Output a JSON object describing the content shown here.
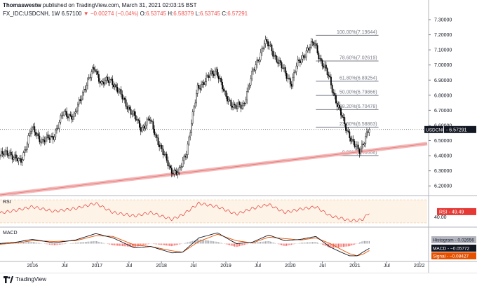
{
  "header": {
    "author": "Thomaswestw",
    "published": "published on TradingView.com, March 31, 2021 02:03:15 BST",
    "symbol": "FX_IDC:USDCNH, 1W",
    "last": "6.57100",
    "change": "▼ −0.00274 (−0.04%)",
    "open_label": "O:",
    "open": "6.53745",
    "high_label": "H:",
    "high": "6.58379",
    "low_label": "L:",
    "low": "6.53745",
    "close_label": "C:",
    "close": "6.57291"
  },
  "colors": {
    "up": "#26a69a",
    "down": "#ef5350",
    "candle": "#000000",
    "trendline": "#f4b8b8",
    "fib": "#787b86",
    "rsi": "#e53935",
    "macd": "#131722",
    "signal": "#e65100",
    "hist_up": "#9598a1",
    "hist_down": "#ef5350"
  },
  "chart_data": [
    {
      "type": "candlestick",
      "timeframe": "1W",
      "y_range": [
        6.15,
        7.3
      ],
      "y_ticks": [
        "6.20000",
        "6.30000",
        "6.40000",
        "6.50000",
        "6.60000",
        "6.70000",
        "6.80000",
        "6.90000",
        "7.00000",
        "7.10000",
        "7.20000",
        "7.30000"
      ],
      "x_range": [
        "2015-07-01",
        "2022-02-15"
      ],
      "x_ticks": [
        {
          "t": "2016-01-01",
          "label": "2016"
        },
        {
          "t": "2016-07-01",
          "label": "Jul"
        },
        {
          "t": "2017-01-01",
          "label": "2017"
        },
        {
          "t": "2017-07-01",
          "label": "Jul"
        },
        {
          "t": "2018-01-01",
          "label": "2018"
        },
        {
          "t": "2018-07-01",
          "label": "Jul"
        },
        {
          "t": "2019-01-01",
          "label": "2019"
        },
        {
          "t": "2019-07-01",
          "label": "Jul"
        },
        {
          "t": "2020-01-01",
          "label": "2020"
        },
        {
          "t": "2020-07-01",
          "label": "Jul"
        },
        {
          "t": "2021-01-01",
          "label": "2021"
        },
        {
          "t": "2021-07-01",
          "label": "Jul"
        },
        {
          "t": "2022-01-01",
          "label": "2022"
        }
      ],
      "price_path": [
        [
          "2015-07-01",
          6.4
        ],
        [
          "2015-09-01",
          6.42
        ],
        [
          "2015-11-01",
          6.35
        ],
        [
          "2016-01-01",
          6.58
        ],
        [
          "2016-03-01",
          6.5
        ],
        [
          "2016-05-01",
          6.52
        ],
        [
          "2016-07-01",
          6.68
        ],
        [
          "2016-09-01",
          6.66
        ],
        [
          "2016-11-01",
          6.86
        ],
        [
          "2016-12-25",
          6.98
        ],
        [
          "2017-02-01",
          6.88
        ],
        [
          "2017-04-01",
          6.9
        ],
        [
          "2017-06-01",
          6.78
        ],
        [
          "2017-08-01",
          6.67
        ],
        [
          "2017-09-15",
          6.58
        ],
        [
          "2017-11-01",
          6.64
        ],
        [
          "2018-01-15",
          6.42
        ],
        [
          "2018-03-01",
          6.31
        ],
        [
          "2018-04-15",
          6.28
        ],
        [
          "2018-06-01",
          6.44
        ],
        [
          "2018-08-01",
          6.85
        ],
        [
          "2018-10-01",
          6.92
        ],
        [
          "2018-11-15",
          6.97
        ],
        [
          "2019-01-01",
          6.8
        ],
        [
          "2019-03-01",
          6.72
        ],
        [
          "2019-04-15",
          6.73
        ],
        [
          "2019-06-01",
          6.92
        ],
        [
          "2019-08-15",
          7.15
        ],
        [
          "2019-09-15",
          7.12
        ],
        [
          "2019-11-01",
          7.02
        ],
        [
          "2020-01-15",
          6.88
        ],
        [
          "2020-02-15",
          7.0
        ],
        [
          "2020-04-01",
          7.08
        ],
        [
          "2020-05-25",
          7.15
        ],
        [
          "2020-07-01",
          7.02
        ],
        [
          "2020-08-15",
          6.92
        ],
        [
          "2020-10-01",
          6.73
        ],
        [
          "2020-11-15",
          6.6
        ],
        [
          "2021-01-01",
          6.47
        ],
        [
          "2021-02-01",
          6.43
        ],
        [
          "2021-03-01",
          6.5
        ],
        [
          "2021-03-29",
          6.57
        ]
      ],
      "trendline": {
        "from": [
          "2015-07-01",
          6.14
        ],
        "to": [
          "2022-02-15",
          6.48
        ]
      },
      "fib_levels": [
        {
          "label": "100.00%(7.19644)",
          "value": 7.19644
        },
        {
          "label": "78.60%(7.02619)",
          "value": 7.02619
        },
        {
          "label": "61.80%(6.89254)",
          "value": 6.89254
        },
        {
          "label": "50.00%(6.79866)",
          "value": 6.79866
        },
        {
          "label": "38.20%(6.70478)",
          "value": 6.70478
        },
        {
          "label": "23.60%(6.58863)",
          "value": 6.58863
        },
        {
          "label": "0.00%(6.40088)",
          "value": 6.40088
        }
      ],
      "fib_range": [
        "2020-05-25",
        "2021-05-15"
      ],
      "last_label": "USDCNH",
      "last_value": 6.57291,
      "last_text": "6.57291"
    },
    {
      "type": "line",
      "name": "RSI",
      "value_text": "49.49",
      "y_range": [
        25,
        75
      ],
      "band": [
        30,
        70
      ],
      "y_ticks": [
        "40.00"
      ],
      "path": [
        [
          "2015-07-01",
          47
        ],
        [
          "2015-10-01",
          52
        ],
        [
          "2016-01-01",
          58
        ],
        [
          "2016-05-01",
          50
        ],
        [
          "2016-09-01",
          55
        ],
        [
          "2016-12-25",
          64
        ],
        [
          "2017-04-01",
          48
        ],
        [
          "2017-08-01",
          42
        ],
        [
          "2017-11-01",
          48
        ],
        [
          "2018-03-01",
          36
        ],
        [
          "2018-05-01",
          44
        ],
        [
          "2018-08-01",
          64
        ],
        [
          "2018-11-15",
          58
        ],
        [
          "2019-03-01",
          45
        ],
        [
          "2019-06-01",
          55
        ],
        [
          "2019-09-01",
          62
        ],
        [
          "2019-12-01",
          48
        ],
        [
          "2020-03-01",
          54
        ],
        [
          "2020-05-25",
          58
        ],
        [
          "2020-08-15",
          42
        ],
        [
          "2020-10-15",
          38
        ],
        [
          "2020-12-01",
          34
        ],
        [
          "2021-01-15",
          34
        ],
        [
          "2021-02-15",
          36
        ],
        [
          "2021-03-29",
          49.5
        ]
      ]
    },
    {
      "type": "macd",
      "name": "MACD",
      "y_range": [
        -0.22,
        0.22
      ],
      "macd_path": [
        [
          "2015-07-01",
          0.0
        ],
        [
          "2015-10-01",
          0.02
        ],
        [
          "2016-01-01",
          0.06
        ],
        [
          "2016-05-01",
          0.01
        ],
        [
          "2016-09-01",
          0.05
        ],
        [
          "2016-12-25",
          0.14
        ],
        [
          "2017-04-01",
          0.08
        ],
        [
          "2017-08-01",
          -0.06
        ],
        [
          "2017-11-01",
          -0.04
        ],
        [
          "2018-03-01",
          -0.13
        ],
        [
          "2018-05-01",
          -0.12
        ],
        [
          "2018-08-01",
          0.08
        ],
        [
          "2018-11-15",
          0.15
        ],
        [
          "2019-03-01",
          0.0
        ],
        [
          "2019-06-01",
          0.02
        ],
        [
          "2019-09-01",
          0.12
        ],
        [
          "2019-12-01",
          0.04
        ],
        [
          "2020-03-01",
          0.06
        ],
        [
          "2020-05-25",
          0.1
        ],
        [
          "2020-08-15",
          -0.05
        ],
        [
          "2020-10-15",
          -0.12
        ],
        [
          "2020-12-01",
          -0.17
        ],
        [
          "2021-01-15",
          -0.17
        ],
        [
          "2021-02-15",
          -0.12
        ],
        [
          "2021-03-29",
          -0.06
        ]
      ],
      "signal_path": [
        [
          "2015-07-01",
          -0.01
        ],
        [
          "2015-10-01",
          0.01
        ],
        [
          "2016-01-01",
          0.04
        ],
        [
          "2016-05-01",
          0.03
        ],
        [
          "2016-09-01",
          0.04
        ],
        [
          "2016-12-25",
          0.11
        ],
        [
          "2017-04-01",
          0.1
        ],
        [
          "2017-08-01",
          -0.02
        ],
        [
          "2017-11-01",
          -0.04
        ],
        [
          "2018-03-01",
          -0.1
        ],
        [
          "2018-05-01",
          -0.12
        ],
        [
          "2018-08-01",
          0.03
        ],
        [
          "2018-11-15",
          0.13
        ],
        [
          "2019-03-01",
          0.04
        ],
        [
          "2019-06-01",
          0.01
        ],
        [
          "2019-09-01",
          0.09
        ],
        [
          "2019-12-01",
          0.07
        ],
        [
          "2020-03-01",
          0.05
        ],
        [
          "2020-05-25",
          0.08
        ],
        [
          "2020-08-15",
          0.0
        ],
        [
          "2020-10-15",
          -0.08
        ],
        [
          "2020-12-01",
          -0.14
        ],
        [
          "2021-01-15",
          -0.17
        ],
        [
          "2021-02-15",
          -0.15
        ],
        [
          "2021-03-29",
          -0.09
        ]
      ],
      "histogram_label": "Histogram",
      "histogram_text": "0.02656",
      "macd_label": "MACD",
      "macd_text": "−0.05772",
      "signal_label": "Signal",
      "signal_text": "−0.08427"
    }
  ],
  "footer": {
    "brand": "TradingView"
  }
}
